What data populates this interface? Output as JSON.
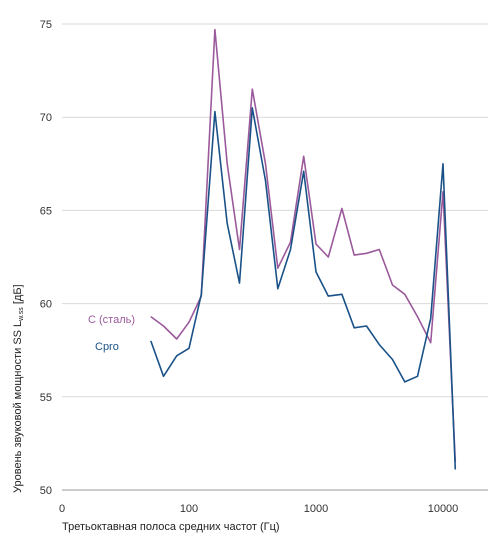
{
  "chart_data": {
    "type": "line",
    "xlabel": "Третьоктавная полоса средних частот (Гц)",
    "ylabel": {
      "prefix": "Уровень звуковой мощности  SS  L",
      "subscript": "w.ss",
      "suffix": " [дБ]"
    },
    "x_scale": "log",
    "ylim": [
      50,
      75
    ],
    "x_ticks": [
      {
        "value": 100,
        "label": "100"
      },
      {
        "value": 1000,
        "label": "1000"
      },
      {
        "value": 10000,
        "label": "10000"
      }
    ],
    "x_origin_label": "0",
    "y_ticks": [
      50,
      55,
      60,
      65,
      70,
      75
    ],
    "grid": {
      "horizontal": true,
      "vertical": false
    },
    "series": [
      {
        "name": "C (сталь)",
        "color": "#9b5a9c",
        "x": [
          50,
          63,
          80,
          100,
          125,
          160,
          200,
          250,
          315,
          400,
          500,
          630,
          800,
          1000,
          1250,
          1600,
          2000,
          2500,
          3150,
          4000,
          5000,
          6300,
          8000,
          10000,
          12500
        ],
        "y": [
          59.3,
          58.8,
          58.1,
          59.0,
          60.4,
          74.7,
          67.5,
          62.9,
          71.5,
          67.5,
          61.9,
          63.3,
          67.9,
          63.2,
          62.5,
          65.1,
          62.6,
          62.7,
          62.9,
          61.0,
          60.5,
          59.3,
          57.9,
          66.0,
          51.5
        ]
      },
      {
        "name": "Cpro",
        "color": "#1a5288",
        "x": [
          50,
          63,
          80,
          100,
          125,
          160,
          200,
          250,
          315,
          400,
          500,
          630,
          800,
          1000,
          1250,
          1600,
          2000,
          2500,
          3150,
          4000,
          5000,
          6300,
          8000,
          10000,
          12500
        ],
        "y": [
          58.0,
          56.1,
          57.2,
          57.6,
          60.5,
          70.3,
          64.3,
          61.1,
          70.5,
          66.6,
          60.8,
          62.9,
          67.1,
          61.7,
          60.4,
          60.5,
          58.7,
          58.8,
          57.8,
          57.0,
          55.8,
          56.1,
          59.2,
          67.5,
          51.1
        ]
      }
    ]
  }
}
